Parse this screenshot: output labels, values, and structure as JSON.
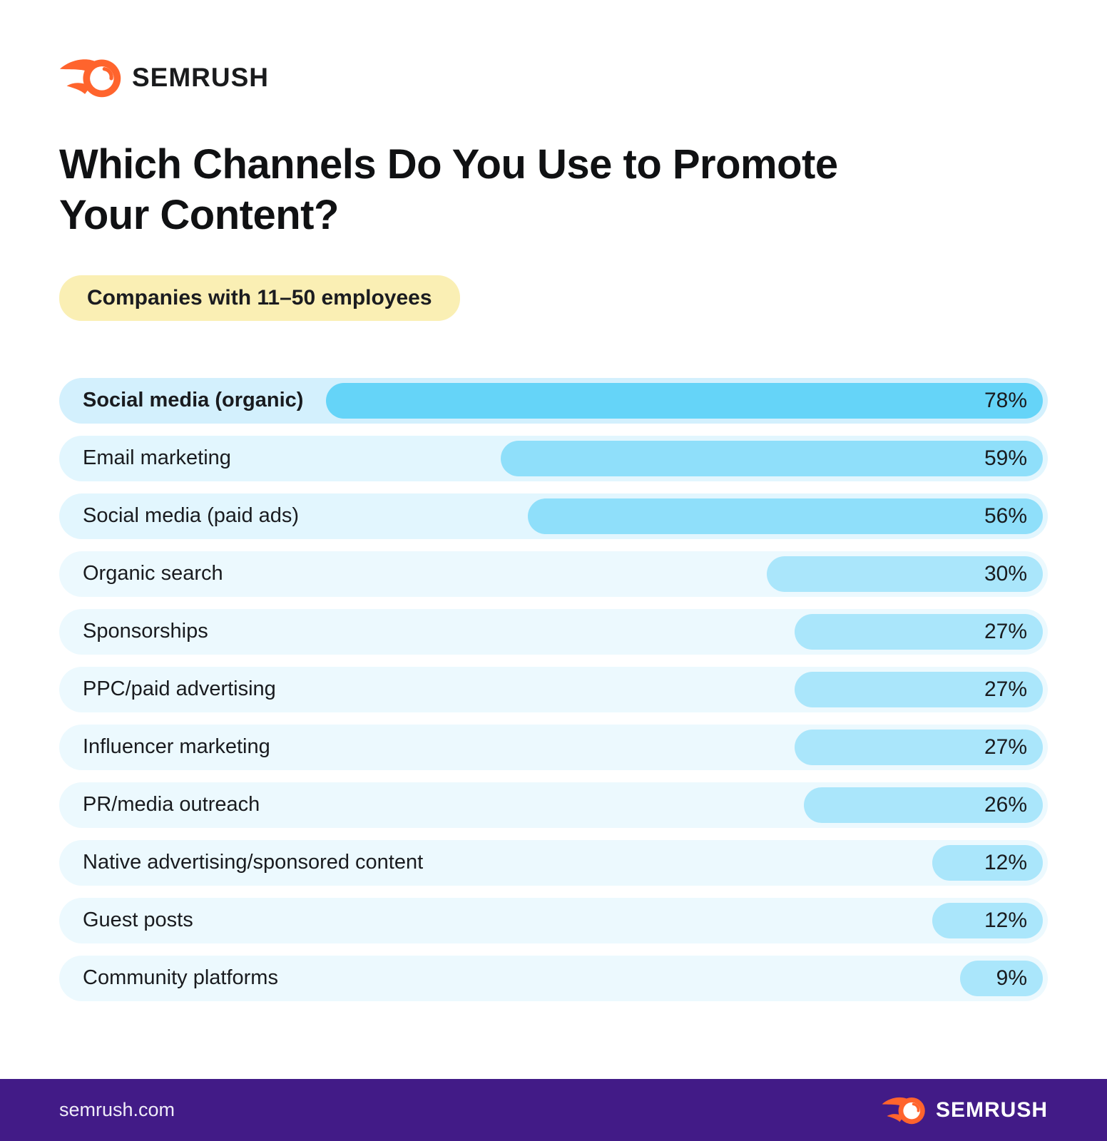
{
  "header": {
    "logo_text": "SEMRUSH"
  },
  "title": "Which Channels Do You Use to Promote Your Content?",
  "badge": {
    "label": "Companies with 11–50 employees",
    "bg": "#FAEFB4"
  },
  "chart_data": {
    "type": "bar",
    "orientation": "horizontal",
    "bar_anchor": "right",
    "title": "Which Channels Do You Use to Promote Your Content?",
    "subtitle": "Companies with 11–50 employees",
    "value_unit": "%",
    "xlim": [
      0,
      100
    ],
    "grid": false,
    "legend": false,
    "categories": [
      "Social media (organic)",
      "Email marketing",
      "Social media (paid ads)",
      "Organic search",
      "Sponsorships",
      "PPC/paid advertising",
      "Influencer marketing",
      "PR/media outreach",
      "Native advertising/sponsored content",
      "Guest posts",
      "Community platforms"
    ],
    "values": [
      78,
      59,
      56,
      30,
      27,
      27,
      27,
      26,
      12,
      12,
      9
    ],
    "rows": [
      {
        "label": "Social media (organic)",
        "value": 78,
        "display": "78%",
        "tier": "tier1",
        "emphasized": true
      },
      {
        "label": "Email marketing",
        "value": 59,
        "display": "59%",
        "tier": "tier2",
        "emphasized": false
      },
      {
        "label": "Social media (paid ads)",
        "value": 56,
        "display": "56%",
        "tier": "tier2",
        "emphasized": false
      },
      {
        "label": "Organic search",
        "value": 30,
        "display": "30%",
        "tier": "tier3",
        "emphasized": false
      },
      {
        "label": "Sponsorships",
        "value": 27,
        "display": "27%",
        "tier": "tier3",
        "emphasized": false
      },
      {
        "label": "PPC/paid advertising",
        "value": 27,
        "display": "27%",
        "tier": "tier3",
        "emphasized": false
      },
      {
        "label": "Influencer marketing",
        "value": 27,
        "display": "27%",
        "tier": "tier3",
        "emphasized": false
      },
      {
        "label": "PR/media outreach",
        "value": 26,
        "display": "26%",
        "tier": "tier3",
        "emphasized": false
      },
      {
        "label": "Native advertising/sponsored content",
        "value": 12,
        "display": "12%",
        "tier": "tier3",
        "emphasized": false
      },
      {
        "label": "Guest posts",
        "value": 12,
        "display": "12%",
        "tier": "tier3",
        "emphasized": false
      },
      {
        "label": "Community platforms",
        "value": 9,
        "display": "9%",
        "tier": "tier3",
        "emphasized": false
      }
    ]
  },
  "colors": {
    "brand_orange": "#FF642D",
    "footer_bg": "#421B87",
    "badge_bg": "#FAEFB4",
    "tiers": {
      "tier1": {
        "track": "#D3F0FD",
        "fill": "#65D4F8"
      },
      "tier2": {
        "track": "#E2F6FE",
        "fill": "#8FDFFA"
      },
      "tier3": {
        "track": "#ECF9FE",
        "fill": "#AAE6FB"
      }
    }
  },
  "footer": {
    "url": "semrush.com",
    "logo_text": "SEMRUSH"
  }
}
